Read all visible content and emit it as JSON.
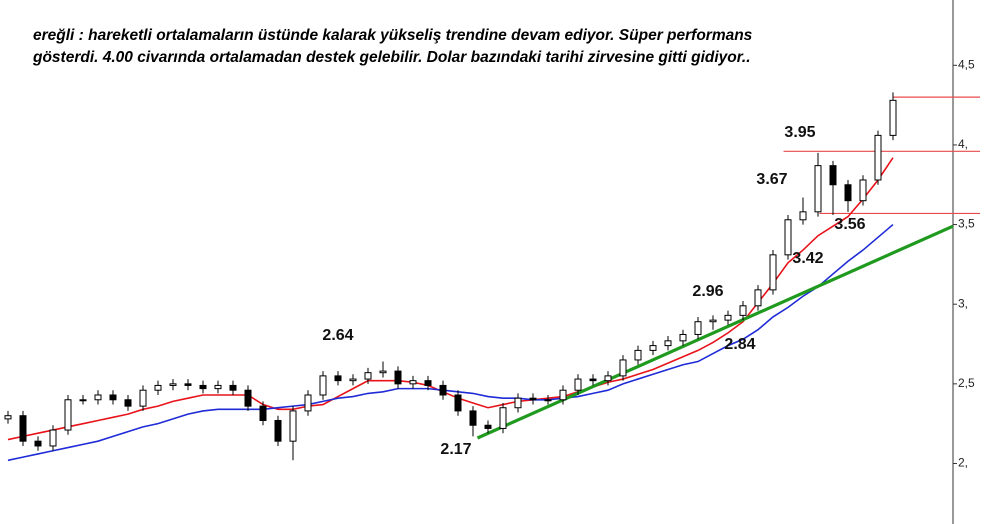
{
  "chart_data": {
    "type": "candlestick",
    "title": [
      "ereğli : hareketli ortalamaların üstünde kalarak yükseliş trendine devam ediyor. Süper performans",
      "gösterdi. 4.00 civarında ortalamadan destek gelebilir. Dolar bazındaki tarihi zirvesine gitti gidiyor.."
    ],
    "open": [
      2.28,
      2.3,
      2.14,
      2.11,
      2.21,
      2.4,
      2.4,
      2.43,
      2.4,
      2.36,
      2.46,
      2.49,
      2.5,
      2.49,
      2.47,
      2.49,
      2.46,
      2.36,
      2.27,
      2.14,
      2.33,
      2.43,
      2.55,
      2.52,
      2.53,
      2.57,
      2.58,
      2.5,
      2.52,
      2.49,
      2.43,
      2.33,
      2.24,
      2.22,
      2.35,
      2.41,
      2.4,
      2.4,
      2.46,
      2.53,
      2.52,
      2.55,
      2.65,
      2.71,
      2.74,
      2.77,
      2.81,
      2.89,
      2.9,
      2.93,
      2.99,
      3.09,
      3.31,
      3.53,
      3.58,
      3.87,
      3.75,
      3.65,
      3.78,
      4.06
    ],
    "high": [
      2.33,
      2.33,
      2.17,
      2.24,
      2.43,
      2.43,
      2.46,
      2.46,
      2.43,
      2.49,
      2.52,
      2.53,
      2.53,
      2.52,
      2.52,
      2.52,
      2.49,
      2.39,
      2.3,
      2.36,
      2.46,
      2.58,
      2.58,
      2.56,
      2.6,
      2.64,
      2.61,
      2.55,
      2.55,
      2.52,
      2.46,
      2.36,
      2.27,
      2.38,
      2.44,
      2.44,
      2.43,
      2.49,
      2.56,
      2.56,
      2.58,
      2.68,
      2.74,
      2.77,
      2.8,
      2.84,
      2.92,
      2.93,
      2.96,
      3.02,
      3.12,
      3.34,
      3.56,
      3.67,
      3.95,
      3.9,
      3.78,
      3.81,
      4.09,
      4.33
    ],
    "low": [
      2.25,
      2.11,
      2.08,
      2.08,
      2.18,
      2.37,
      2.37,
      2.37,
      2.33,
      2.33,
      2.43,
      2.46,
      2.46,
      2.44,
      2.44,
      2.43,
      2.33,
      2.24,
      2.11,
      2.02,
      2.3,
      2.4,
      2.49,
      2.49,
      2.5,
      2.54,
      2.47,
      2.47,
      2.46,
      2.4,
      2.3,
      2.17,
      2.19,
      2.19,
      2.32,
      2.37,
      2.37,
      2.37,
      2.43,
      2.49,
      2.49,
      2.52,
      2.62,
      2.68,
      2.71,
      2.74,
      2.78,
      2.84,
      2.87,
      2.9,
      2.96,
      3.06,
      3.28,
      3.5,
      3.55,
      3.56,
      3.58,
      3.62,
      3.75,
      4.03
    ],
    "close": [
      2.3,
      2.14,
      2.11,
      2.21,
      2.4,
      2.4,
      2.43,
      2.4,
      2.36,
      2.46,
      2.49,
      2.5,
      2.49,
      2.47,
      2.49,
      2.46,
      2.36,
      2.27,
      2.14,
      2.33,
      2.43,
      2.55,
      2.52,
      2.53,
      2.57,
      2.58,
      2.5,
      2.52,
      2.49,
      2.43,
      2.33,
      2.24,
      2.22,
      2.35,
      2.41,
      2.4,
      2.4,
      2.46,
      2.53,
      2.52,
      2.55,
      2.65,
      2.71,
      2.74,
      2.77,
      2.81,
      2.89,
      2.9,
      2.93,
      2.99,
      3.09,
      3.31,
      3.53,
      3.58,
      3.87,
      3.75,
      3.65,
      3.78,
      4.06,
      4.28
    ],
    "series": [
      {
        "color": "#e8121a",
        "values": [
          2.15,
          2.17,
          2.19,
          2.21,
          2.23,
          2.25,
          2.27,
          2.29,
          2.31,
          2.34,
          2.36,
          2.39,
          2.41,
          2.43,
          2.43,
          2.43,
          2.43,
          2.37,
          2.34,
          2.34,
          2.36,
          2.37,
          2.42,
          2.47,
          2.52,
          2.52,
          2.52,
          2.51,
          2.49,
          2.45,
          2.41,
          2.38,
          2.35,
          2.37,
          2.39,
          2.4,
          2.41,
          2.42,
          2.45,
          2.48,
          2.51,
          2.53,
          2.56,
          2.59,
          2.63,
          2.67,
          2.71,
          2.76,
          2.82,
          2.89,
          3.01,
          3.13,
          3.26,
          3.34,
          3.43,
          3.49,
          3.55,
          3.66,
          3.78,
          3.92
        ]
      },
      {
        "color": "#1f2bd6",
        "values": [
          2.02,
          2.04,
          2.06,
          2.08,
          2.1,
          2.12,
          2.14,
          2.17,
          2.2,
          2.23,
          2.25,
          2.28,
          2.31,
          2.33,
          2.34,
          2.34,
          2.34,
          2.34,
          2.35,
          2.36,
          2.37,
          2.39,
          2.41,
          2.42,
          2.44,
          2.45,
          2.47,
          2.47,
          2.47,
          2.46,
          2.45,
          2.44,
          2.42,
          2.41,
          2.41,
          2.4,
          2.4,
          2.41,
          2.42,
          2.44,
          2.46,
          2.5,
          2.53,
          2.56,
          2.59,
          2.62,
          2.64,
          2.69,
          2.74,
          2.78,
          2.84,
          2.92,
          2.98,
          3.05,
          3.11,
          3.19,
          3.27,
          3.34,
          3.42,
          3.5
        ]
      }
    ],
    "trendline": {
      "color": "#1f9a1f",
      "x": [
        31.3,
        63
      ],
      "values": [
        2.16,
        3.49
      ]
    },
    "levels": [
      {
        "value": 4.3,
        "from": 59
      },
      {
        "value": 3.96,
        "from": 51.7
      },
      {
        "value": 3.57,
        "from": 54.1
      }
    ],
    "level_color": "#e84a4a",
    "annotations": [
      "3.95",
      "3.67",
      "3.56",
      "3.42",
      "2.96",
      "2.84",
      "2.64",
      "2.17"
    ],
    "ylim": [
      1.62,
      4.91
    ],
    "yticks": [
      {
        "value": 2,
        "label": "2,"
      },
      {
        "value": 2.5,
        "label": "2,5"
      },
      {
        "value": 3,
        "label": "3,"
      },
      {
        "value": 3.5,
        "label": "3,5"
      },
      {
        "value": 4,
        "label": "4,"
      },
      {
        "value": 4.5,
        "label": "4,5"
      }
    ]
  }
}
